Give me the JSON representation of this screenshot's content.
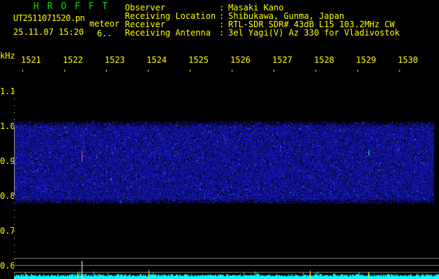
{
  "header": {
    "app_title": "H R O F F T",
    "filename": "UT2511071520.pn",
    "mode": "meteor",
    "datetime": "25.11.07 15:20",
    "counter": "6..",
    "fields": [
      {
        "label": "Observer",
        "value": "Masaki Kano"
      },
      {
        "label": "Receiving Location",
        "value": "Shibukawa, Gunma, Japan"
      },
      {
        "label": "Receiver",
        "value": "RTL-SDR SDR# 43dB L15 103.2MHz CW"
      },
      {
        "label": "Receiving Antenna",
        "value": "3el Yagi(V) Az 330 for Vladivostok"
      }
    ]
  },
  "axis": {
    "y_unit": "kHz",
    "x_ticks": [
      "1521",
      "1522",
      "1523",
      "1524",
      "1525",
      "1526",
      "1527",
      "1528",
      "1529",
      "1530"
    ],
    "y_ticks": [
      "1.1",
      "1.0",
      "0.9",
      "0.8",
      "0.7",
      "0.6"
    ]
  },
  "colors": {
    "text": "#ffff00",
    "title": "#00e000",
    "noise": "#1a1aff",
    "level_bar": "#00ffff",
    "guide_lines": "#808080"
  }
}
